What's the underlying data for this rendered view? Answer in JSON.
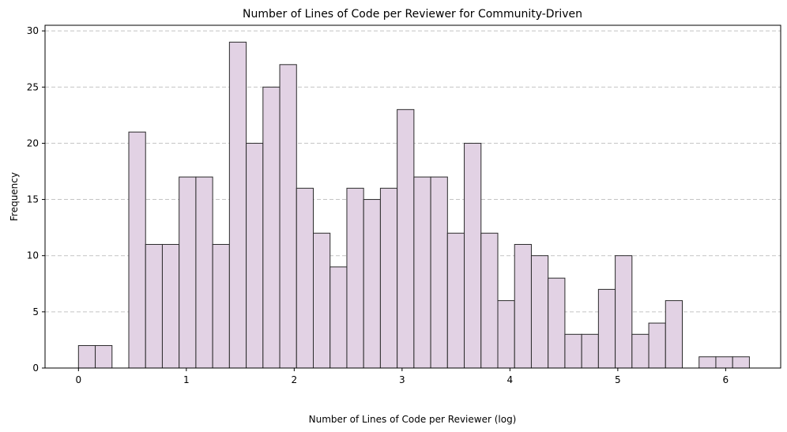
{
  "chart_data": {
    "type": "bar",
    "title": "Number of Lines of Code per Reviewer for Community-Driven",
    "xlabel": "Number of Lines of Code per Reviewer (log)",
    "ylabel": "Frequency",
    "xlim": [
      -0.31,
      6.51
    ],
    "ylim": [
      0,
      30.5
    ],
    "x_ticks": [
      0,
      1,
      2,
      3,
      4,
      5,
      6
    ],
    "y_ticks": [
      0,
      5,
      10,
      15,
      20,
      25,
      30
    ],
    "bin_width": 0.1555,
    "bin_starts": [
      0,
      0.1555,
      0.311,
      0.4665,
      0.622,
      0.7775,
      0.933,
      1.0885,
      1.244,
      1.3995,
      1.555,
      1.7105,
      1.866,
      2.0215,
      2.177,
      2.3325,
      2.488,
      2.6435,
      2.799,
      2.9545,
      3.11,
      3.2655,
      3.421,
      3.5765,
      3.732,
      3.8875,
      4.043,
      4.1985,
      4.354,
      4.5095,
      4.665,
      4.8205,
      4.976,
      5.1315,
      5.287,
      5.4425,
      5.598,
      5.7535,
      5.909,
      6.0645
    ],
    "values": [
      2,
      2,
      0,
      21,
      11,
      11,
      17,
      17,
      11,
      29,
      20,
      25,
      27,
      16,
      12,
      9,
      16,
      15,
      16,
      23,
      17,
      17,
      12,
      20,
      12,
      6,
      11,
      10,
      8,
      3,
      3,
      7,
      10,
      3,
      4,
      6,
      0,
      1,
      1,
      1
    ],
    "grid": "y-dashed",
    "bar_color": "#e2d2e4",
    "edge_color": "#2b2b2b"
  }
}
